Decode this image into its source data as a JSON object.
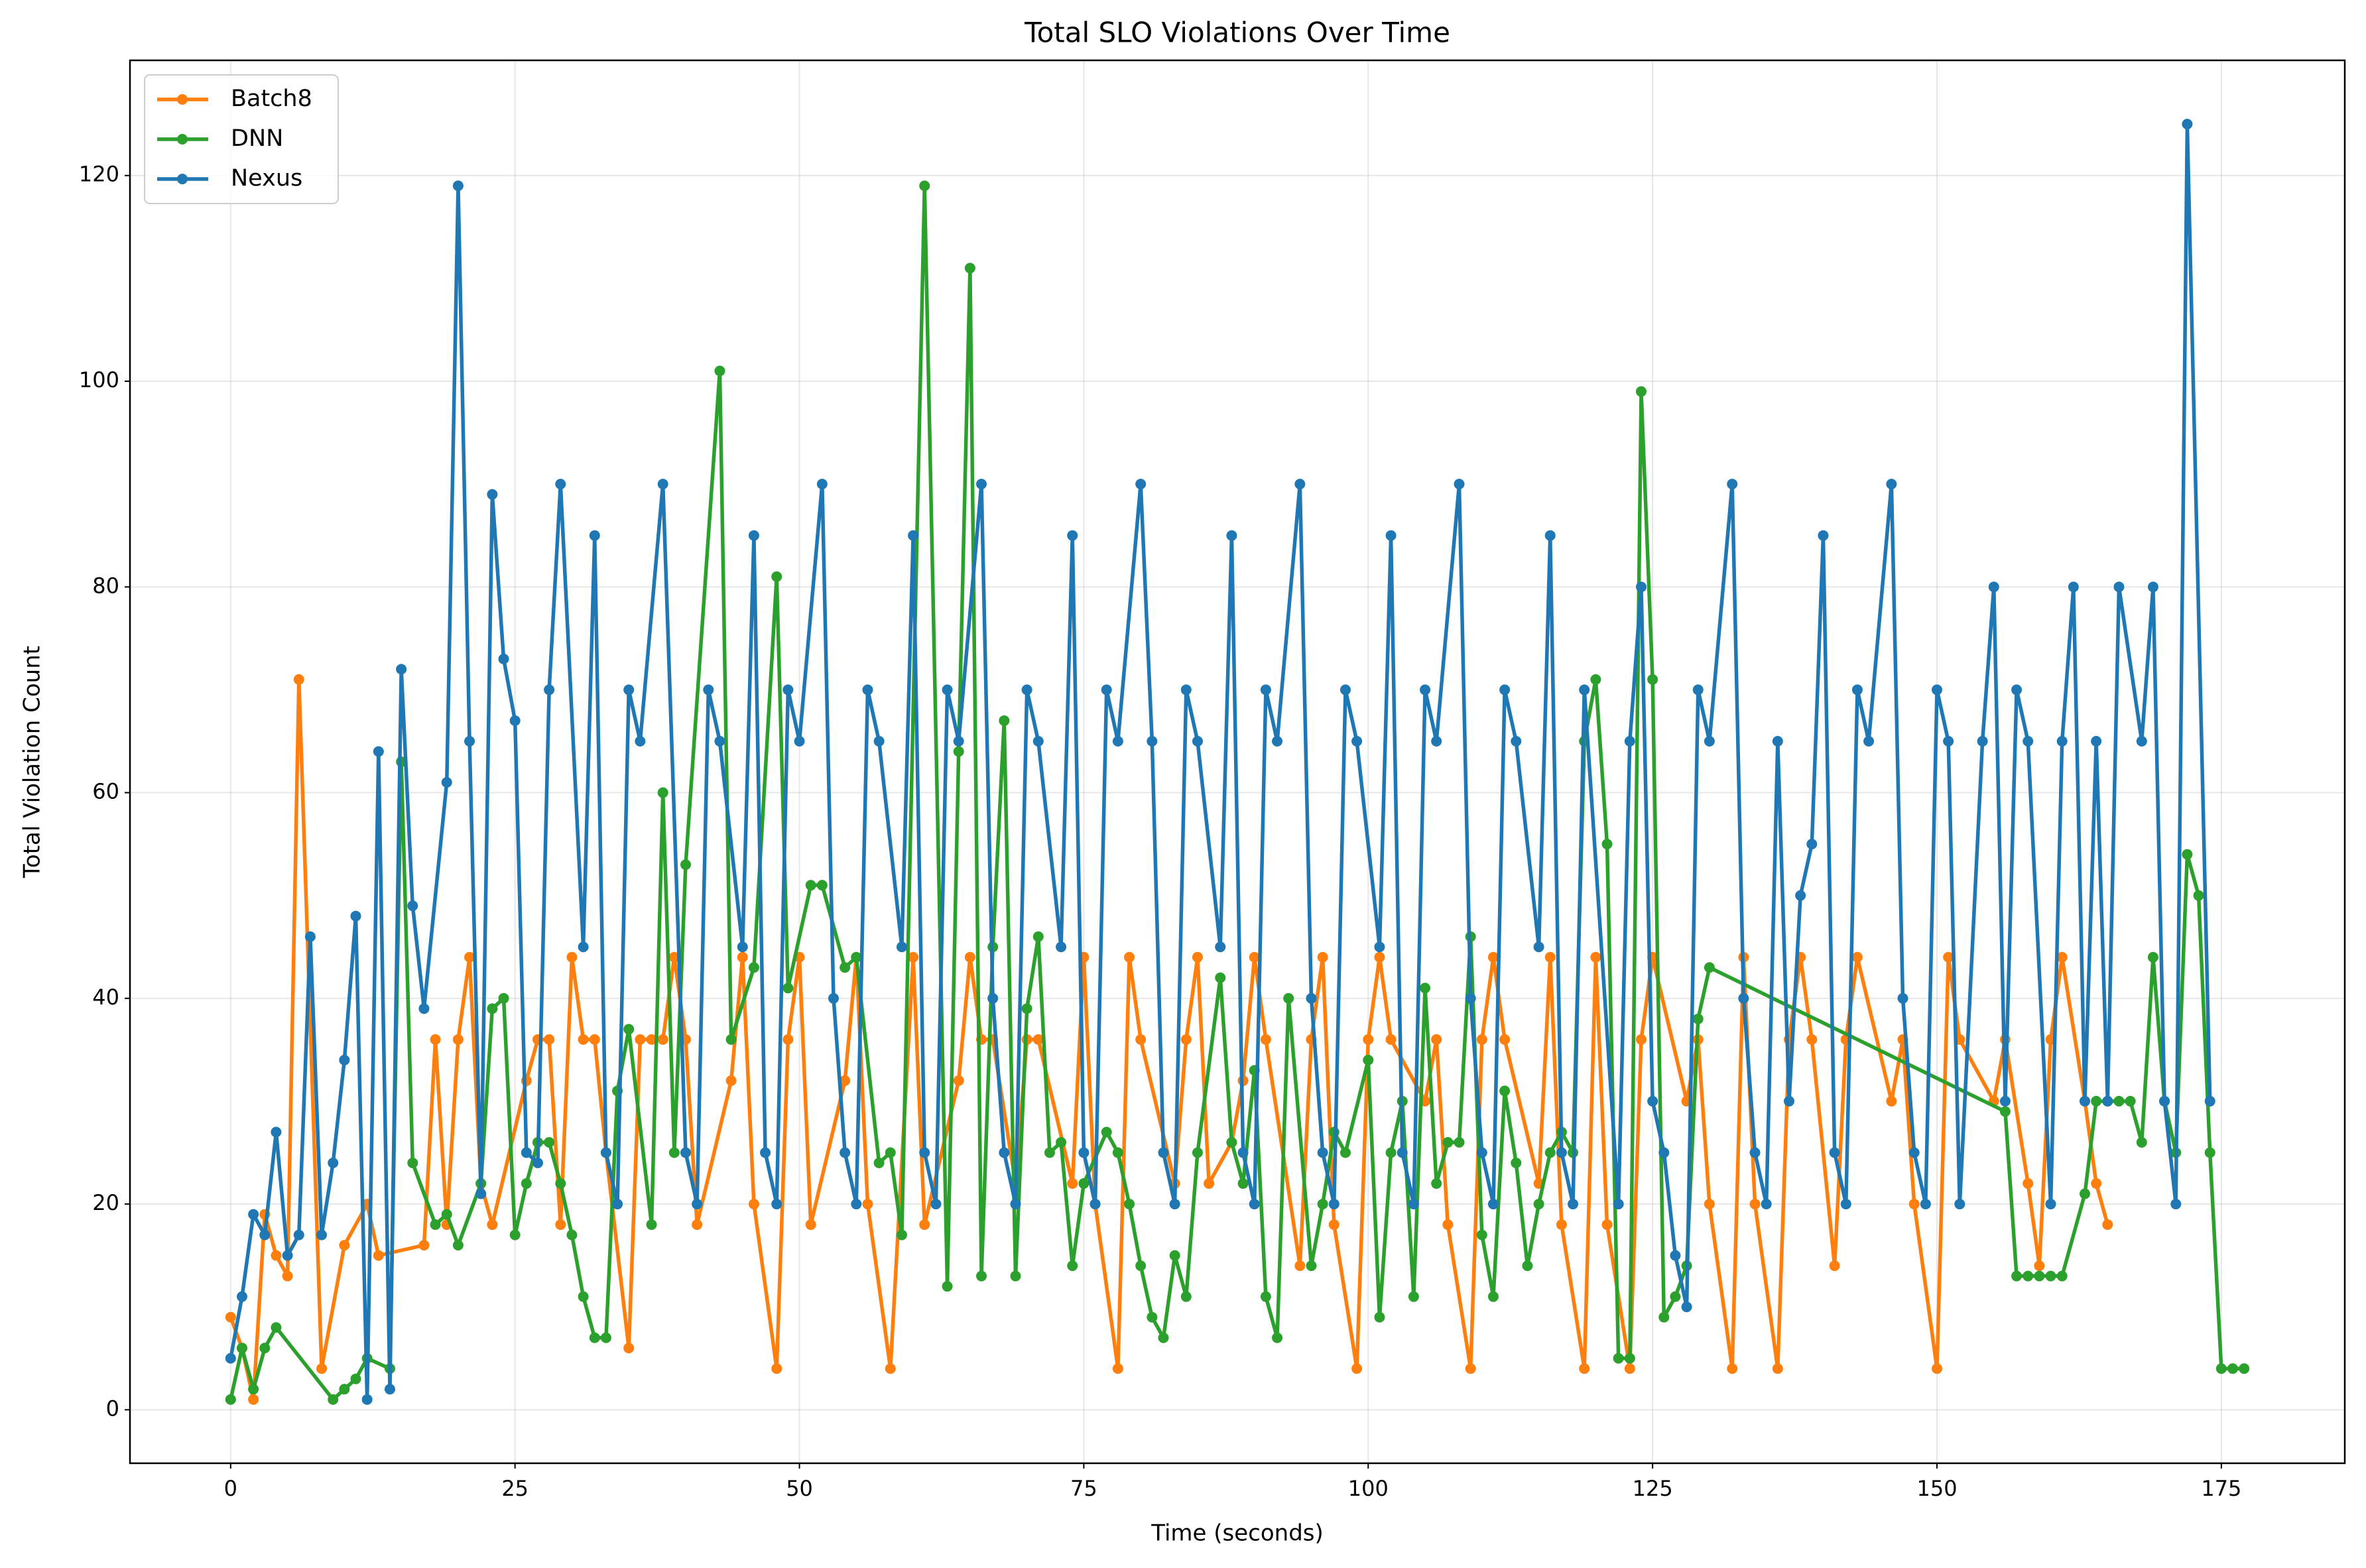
{
  "chart_data": {
    "type": "line",
    "title": "Total SLO Violations Over Time",
    "x_label": "Time (seconds)",
    "y_label": "Total Violation Count",
    "xlim": [
      -8.85,
      185.85
    ],
    "xticks": [
      0,
      25,
      50,
      75,
      100,
      125,
      150,
      175
    ],
    "ylim": [
      -5.2,
      131.2
    ],
    "yticks": [
      0,
      20,
      40,
      60,
      80,
      100,
      120
    ],
    "grid": true,
    "legend": "upper left",
    "series": [
      {
        "name": "Batch8",
        "color": "#ff7f0e",
        "x": [
          0,
          1,
          2,
          3,
          4,
          5,
          6,
          8,
          10,
          12,
          13,
          17,
          18,
          19,
          20,
          21,
          22,
          23,
          26,
          27,
          28,
          29,
          30,
          31,
          32,
          33,
          35,
          36,
          37,
          38,
          39,
          40,
          41,
          44,
          45,
          46,
          48,
          49,
          50,
          51,
          54,
          55,
          56,
          58,
          60,
          61,
          64,
          65,
          66,
          67,
          69,
          70,
          71,
          74,
          75,
          76,
          78,
          79,
          80,
          83,
          84,
          85,
          86,
          88,
          89,
          90,
          91,
          94,
          95,
          96,
          97,
          99,
          100,
          101,
          102,
          105,
          106,
          107,
          109,
          110,
          111,
          112,
          115,
          116,
          117,
          119,
          120,
          121,
          123,
          124,
          125,
          128,
          129,
          130,
          132,
          133,
          134,
          136,
          137,
          138,
          139,
          141,
          142,
          143,
          146,
          147,
          148,
          150,
          151,
          152,
          155,
          156,
          158,
          159,
          160,
          161,
          163,
          164,
          165
        ],
        "values": [
          9,
          6,
          1,
          19,
          15,
          13,
          71,
          4,
          16,
          20,
          15,
          16,
          36,
          18,
          36,
          44,
          22,
          18,
          32,
          36,
          36,
          18,
          44,
          36,
          36,
          25,
          6,
          36,
          36,
          36,
          44,
          36,
          18,
          32,
          44,
          20,
          4,
          36,
          44,
          18,
          32,
          44,
          20,
          4,
          44,
          18,
          32,
          44,
          36,
          36,
          22,
          36,
          36,
          22,
          44,
          20,
          4,
          44,
          36,
          22,
          36,
          44,
          22,
          26,
          32,
          44,
          36,
          14,
          36,
          44,
          18,
          4,
          36,
          44,
          36,
          30,
          36,
          18,
          4,
          36,
          44,
          36,
          22,
          44,
          18,
          4,
          44,
          18,
          4,
          36,
          44,
          30,
          36,
          20,
          4,
          44,
          20,
          4,
          36,
          44,
          36,
          14,
          36,
          44,
          30,
          36,
          20,
          4,
          44,
          36,
          30,
          36,
          22,
          14,
          36,
          44,
          30,
          22,
          18
        ]
      },
      {
        "name": "DNN",
        "color": "#2ca02c",
        "x": [
          0,
          1,
          2,
          3,
          4,
          9,
          10,
          11,
          12,
          14,
          15,
          16,
          18,
          19,
          20,
          22,
          23,
          24,
          25,
          26,
          27,
          28,
          29,
          30,
          31,
          32,
          33,
          34,
          35,
          37,
          38,
          39,
          40,
          43,
          44,
          46,
          48,
          49,
          51,
          52,
          54,
          55,
          57,
          58,
          59,
          61,
          63,
          64,
          65,
          66,
          67,
          68,
          69,
          70,
          71,
          72,
          73,
          74,
          75,
          77,
          78,
          79,
          80,
          81,
          82,
          83,
          84,
          85,
          87,
          88,
          89,
          90,
          91,
          92,
          93,
          95,
          96,
          97,
          98,
          100,
          101,
          102,
          103,
          104,
          105,
          106,
          107,
          108,
          109,
          110,
          111,
          112,
          113,
          114,
          115,
          116,
          117,
          118,
          119,
          120,
          121,
          122,
          123,
          124,
          125,
          126,
          127,
          128,
          129,
          130,
          156,
          157,
          158,
          159,
          160,
          161,
          163,
          164,
          165,
          166,
          167,
          168,
          169,
          170,
          171,
          172,
          173,
          174,
          175,
          176,
          177
        ],
        "values": [
          1,
          6,
          2,
          6,
          8,
          1,
          2,
          3,
          5,
          4,
          63,
          24,
          18,
          19,
          16,
          22,
          39,
          40,
          17,
          22,
          26,
          26,
          22,
          17,
          11,
          7,
          7,
          31,
          37,
          18,
          60,
          25,
          53,
          101,
          36,
          43,
          81,
          41,
          51,
          51,
          43,
          44,
          24,
          25,
          17,
          119,
          12,
          64,
          111,
          13,
          45,
          67,
          13,
          39,
          46,
          25,
          26,
          14,
          22,
          27,
          25,
          20,
          14,
          9,
          7,
          15,
          11,
          25,
          42,
          26,
          22,
          33,
          11,
          7,
          40,
          14,
          20,
          27,
          25,
          34,
          9,
          25,
          30,
          11,
          41,
          22,
          26,
          26,
          46,
          17,
          11,
          31,
          24,
          14,
          20,
          25,
          27,
          25,
          65,
          71,
          55,
          5,
          5,
          99,
          71,
          9,
          11,
          14,
          38,
          43,
          29,
          13,
          13,
          13,
          13,
          13,
          21,
          30,
          30,
          30,
          30,
          26,
          44,
          30,
          25,
          54,
          50,
          25,
          4,
          4,
          4
        ]
      },
      {
        "name": "Nexus",
        "color": "#1f77b4",
        "x": [
          0,
          1,
          2,
          3,
          4,
          5,
          6,
          7,
          8,
          9,
          10,
          11,
          12,
          13,
          14,
          15,
          16,
          17,
          19,
          20,
          21,
          22,
          23,
          24,
          25,
          26,
          27,
          28,
          29,
          31,
          32,
          33,
          34,
          35,
          36,
          38,
          40,
          41,
          42,
          43,
          45,
          46,
          47,
          48,
          49,
          50,
          52,
          53,
          54,
          55,
          56,
          57,
          59,
          60,
          61,
          62,
          63,
          64,
          66,
          67,
          68,
          69,
          70,
          71,
          73,
          74,
          75,
          76,
          77,
          78,
          80,
          81,
          82,
          83,
          84,
          85,
          87,
          88,
          89,
          90,
          91,
          92,
          94,
          95,
          96,
          97,
          98,
          99,
          101,
          102,
          103,
          104,
          105,
          106,
          108,
          109,
          110,
          111,
          112,
          113,
          115,
          116,
          117,
          118,
          119,
          122,
          123,
          124,
          125,
          126,
          127,
          128,
          129,
          130,
          132,
          133,
          134,
          135,
          136,
          137,
          138,
          139,
          140,
          141,
          142,
          143,
          144,
          146,
          147,
          148,
          149,
          150,
          151,
          152,
          154,
          155,
          156,
          157,
          158,
          160,
          161,
          162,
          163,
          164,
          165,
          166,
          168,
          169,
          170,
          171,
          172,
          174
        ],
        "values": [
          5,
          11,
          19,
          17,
          27,
          15,
          17,
          46,
          17,
          24,
          34,
          48,
          1,
          64,
          2,
          72,
          49,
          39,
          61,
          119,
          65,
          21,
          89,
          73,
          67,
          25,
          24,
          70,
          90,
          45,
          85,
          25,
          20,
          70,
          65,
          90,
          25,
          20,
          70,
          65,
          45,
          85,
          25,
          20,
          70,
          65,
          90,
          40,
          25,
          20,
          70,
          65,
          45,
          85,
          25,
          20,
          70,
          65,
          90,
          40,
          25,
          20,
          70,
          65,
          45,
          85,
          25,
          20,
          70,
          65,
          90,
          65,
          25,
          20,
          70,
          65,
          45,
          85,
          25,
          20,
          70,
          65,
          90,
          40,
          25,
          20,
          70,
          65,
          45,
          85,
          25,
          20,
          70,
          65,
          90,
          40,
          25,
          20,
          70,
          65,
          45,
          85,
          25,
          20,
          70,
          20,
          65,
          80,
          30,
          25,
          15,
          10,
          70,
          65,
          90,
          40,
          25,
          20,
          65,
          30,
          50,
          55,
          85,
          25,
          20,
          70,
          65,
          90,
          40,
          25,
          20,
          70,
          65,
          20,
          65,
          80,
          30,
          70,
          65,
          20,
          65,
          80,
          30,
          65,
          30,
          80,
          65,
          80,
          30,
          20,
          125,
          30
        ]
      }
    ]
  }
}
